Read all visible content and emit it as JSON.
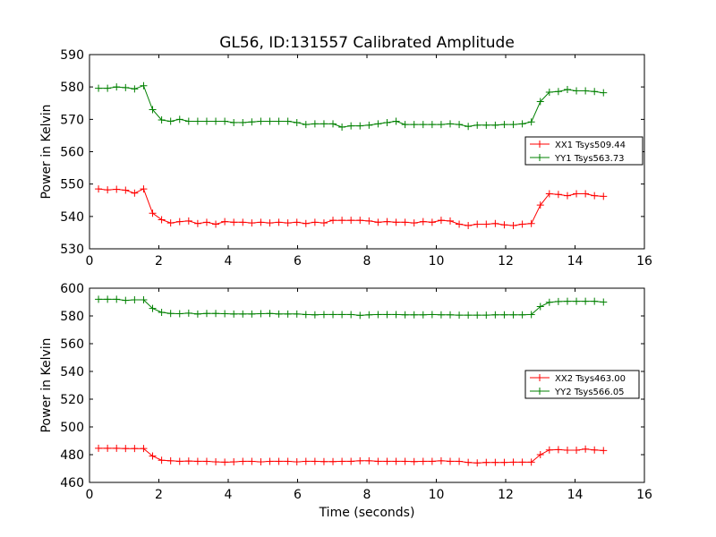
{
  "figure": {
    "title": "GL56, ID:131557 Calibrated Amplitude",
    "xlabel": "Time (seconds)"
  },
  "chart_data": [
    {
      "type": "line",
      "title": "GL56, ID:131557 Calibrated Amplitude",
      "xlabel": "",
      "ylabel": "Power in Kelvin",
      "xlim": [
        0,
        16
      ],
      "ylim": [
        530,
        590
      ],
      "xticks": [
        "0",
        "2",
        "4",
        "6",
        "8",
        "10",
        "12",
        "14",
        "16"
      ],
      "yticks": [
        "530",
        "540",
        "550",
        "560",
        "570",
        "580",
        "590"
      ],
      "grid": false,
      "legend_position": "center-right",
      "series": [
        {
          "name": "XX1 Tsys509.44",
          "color": "#ff0000",
          "x": [
            0.26,
            0.52,
            0.78,
            1.04,
            1.3,
            1.56,
            1.82,
            2.08,
            2.34,
            2.6,
            2.86,
            3.12,
            3.38,
            3.64,
            3.9,
            4.16,
            4.42,
            4.68,
            4.94,
            5.2,
            5.46,
            5.72,
            5.98,
            6.24,
            6.5,
            6.76,
            7.02,
            7.28,
            7.54,
            7.8,
            8.06,
            8.32,
            8.58,
            8.84,
            9.1,
            9.36,
            9.62,
            9.88,
            10.14,
            10.4,
            10.66,
            10.92,
            11.18,
            11.44,
            11.7,
            11.96,
            12.22,
            12.48,
            12.74,
            13.0,
            13.26,
            13.52,
            13.78,
            14.04,
            14.3,
            14.56,
            14.82
          ],
          "y": [
            548.5,
            548.2,
            548.4,
            548.1,
            547.2,
            548.5,
            541.0,
            539.0,
            538.0,
            538.4,
            538.6,
            537.8,
            538.2,
            537.6,
            538.4,
            538.2,
            538.2,
            538.0,
            538.2,
            538.0,
            538.2,
            538.0,
            538.2,
            537.8,
            538.2,
            538.0,
            538.8,
            538.8,
            538.8,
            538.8,
            538.6,
            538.2,
            538.4,
            538.2,
            538.2,
            538.0,
            538.4,
            538.2,
            538.8,
            538.6,
            537.6,
            537.2,
            537.6,
            537.6,
            537.8,
            537.4,
            537.2,
            537.6,
            537.8,
            543.5,
            547.0,
            546.8,
            546.4,
            547.0,
            547.0,
            546.4,
            546.2
          ]
        },
        {
          "name": "YY1 Tsys563.73",
          "color": "#008000",
          "x": [
            0.26,
            0.52,
            0.78,
            1.04,
            1.3,
            1.56,
            1.82,
            2.08,
            2.34,
            2.6,
            2.86,
            3.12,
            3.38,
            3.64,
            3.9,
            4.16,
            4.42,
            4.68,
            4.94,
            5.2,
            5.46,
            5.72,
            5.98,
            6.24,
            6.5,
            6.76,
            7.02,
            7.28,
            7.54,
            7.8,
            8.06,
            8.32,
            8.58,
            8.84,
            9.1,
            9.36,
            9.62,
            9.88,
            10.14,
            10.4,
            10.66,
            10.92,
            11.18,
            11.44,
            11.7,
            11.96,
            12.22,
            12.48,
            12.74,
            13.0,
            13.26,
            13.52,
            13.78,
            14.04,
            14.3,
            14.56,
            14.82
          ],
          "y": [
            579.6,
            579.6,
            580.0,
            579.8,
            579.4,
            580.4,
            573.0,
            569.8,
            569.4,
            570.0,
            569.4,
            569.4,
            569.4,
            569.4,
            569.4,
            569.0,
            569.0,
            569.2,
            569.4,
            569.4,
            569.4,
            569.4,
            569.0,
            568.4,
            568.6,
            568.6,
            568.6,
            567.6,
            568.0,
            568.0,
            568.2,
            568.6,
            569.0,
            569.4,
            568.4,
            568.4,
            568.4,
            568.4,
            568.4,
            568.6,
            568.4,
            567.8,
            568.2,
            568.2,
            568.2,
            568.4,
            568.4,
            568.6,
            569.2,
            575.5,
            578.4,
            578.6,
            579.2,
            578.8,
            578.8,
            578.6,
            578.2
          ]
        }
      ]
    },
    {
      "type": "line",
      "title": "",
      "xlabel": "Time (seconds)",
      "ylabel": "Power in Kelvin",
      "xlim": [
        0,
        16
      ],
      "ylim": [
        460,
        600
      ],
      "xticks": [
        "0",
        "2",
        "4",
        "6",
        "8",
        "10",
        "12",
        "14",
        "16"
      ],
      "yticks": [
        "460",
        "480",
        "500",
        "520",
        "540",
        "560",
        "580",
        "600"
      ],
      "grid": false,
      "legend_position": "center-right",
      "series": [
        {
          "name": "XX2 Tsys463.00",
          "color": "#ff0000",
          "x": [
            0.26,
            0.52,
            0.78,
            1.04,
            1.3,
            1.56,
            1.82,
            2.08,
            2.34,
            2.6,
            2.86,
            3.12,
            3.38,
            3.64,
            3.9,
            4.16,
            4.42,
            4.68,
            4.94,
            5.2,
            5.46,
            5.72,
            5.98,
            6.24,
            6.5,
            6.76,
            7.02,
            7.28,
            7.54,
            7.8,
            8.06,
            8.32,
            8.58,
            8.84,
            9.1,
            9.36,
            9.62,
            9.88,
            10.14,
            10.4,
            10.66,
            10.92,
            11.18,
            11.44,
            11.7,
            11.96,
            12.22,
            12.48,
            12.74,
            13.0,
            13.26,
            13.52,
            13.78,
            14.04,
            14.3,
            14.56,
            14.82
          ],
          "y": [
            484.6,
            484.6,
            484.6,
            484.4,
            484.4,
            484.4,
            479.0,
            476.0,
            475.6,
            475.2,
            475.4,
            475.2,
            475.2,
            474.8,
            474.6,
            474.8,
            475.2,
            475.2,
            474.8,
            475.2,
            475.2,
            475.2,
            474.8,
            475.2,
            475.2,
            475.0,
            475.0,
            475.2,
            475.2,
            475.6,
            475.6,
            475.2,
            475.2,
            475.2,
            475.2,
            475.0,
            475.2,
            475.2,
            475.6,
            475.2,
            475.2,
            474.4,
            474.0,
            474.4,
            474.4,
            474.4,
            474.6,
            474.6,
            474.6,
            480.0,
            483.4,
            483.6,
            483.2,
            483.2,
            484.0,
            483.4,
            483.0
          ]
        },
        {
          "name": "YY2 Tsys566.05",
          "color": "#008000",
          "x": [
            0.26,
            0.52,
            0.78,
            1.04,
            1.3,
            1.56,
            1.82,
            2.08,
            2.34,
            2.6,
            2.86,
            3.12,
            3.38,
            3.64,
            3.9,
            4.16,
            4.42,
            4.68,
            4.94,
            5.2,
            5.46,
            5.72,
            5.98,
            6.24,
            6.5,
            6.76,
            7.02,
            7.28,
            7.54,
            7.8,
            8.06,
            8.32,
            8.58,
            8.84,
            9.1,
            9.36,
            9.62,
            9.88,
            10.14,
            10.4,
            10.66,
            10.92,
            11.18,
            11.44,
            11.7,
            11.96,
            12.22,
            12.48,
            12.74,
            13.0,
            13.26,
            13.52,
            13.78,
            14.04,
            14.3,
            14.56,
            14.82
          ],
          "y": [
            592.0,
            592.0,
            592.0,
            591.2,
            591.6,
            591.6,
            585.4,
            582.6,
            581.8,
            581.6,
            582.0,
            581.4,
            581.8,
            581.8,
            581.6,
            581.4,
            581.4,
            581.4,
            581.6,
            581.8,
            581.4,
            581.4,
            581.4,
            581.0,
            580.8,
            581.0,
            581.0,
            581.0,
            581.0,
            580.4,
            580.8,
            581.0,
            581.0,
            581.0,
            580.8,
            580.8,
            580.8,
            581.0,
            580.8,
            580.8,
            580.6,
            580.6,
            580.6,
            580.6,
            580.8,
            580.8,
            580.8,
            580.8,
            581.0,
            586.8,
            589.8,
            590.4,
            590.6,
            590.6,
            590.6,
            590.6,
            590.0
          ]
        }
      ]
    }
  ]
}
